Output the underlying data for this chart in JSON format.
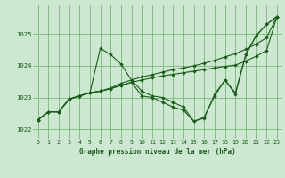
{
  "title": "Graphe pression niveau de la mer (hPa)",
  "background_color": "#cce8d0",
  "grid_color": "#6aab6a",
  "line_color": "#1a5c1a",
  "xlim": [
    -0.5,
    23.5
  ],
  "ylim": [
    1021.7,
    1025.9
  ],
  "yticks": [
    1022,
    1023,
    1024,
    1025
  ],
  "xticks": [
    0,
    1,
    2,
    3,
    4,
    5,
    6,
    7,
    8,
    9,
    10,
    11,
    12,
    13,
    14,
    15,
    16,
    17,
    18,
    19,
    20,
    21,
    22,
    23
  ],
  "series": [
    [
      1022.3,
      1022.55,
      1022.55,
      1022.95,
      1023.05,
      1023.15,
      1024.55,
      1024.35,
      1024.05,
      1023.55,
      1023.2,
      1023.05,
      1023.0,
      1022.85,
      1022.7,
      1022.25,
      1022.35,
      1023.1,
      1023.55,
      1023.15,
      1024.35,
      1024.95,
      1025.3,
      1025.55
    ],
    [
      1022.3,
      1022.55,
      1022.55,
      1022.95,
      1023.05,
      1023.15,
      1023.2,
      1023.3,
      1023.45,
      1023.55,
      1023.65,
      1023.72,
      1023.8,
      1023.88,
      1023.93,
      1024.0,
      1024.08,
      1024.17,
      1024.28,
      1024.38,
      1024.52,
      1024.68,
      1024.88,
      1025.55
    ],
    [
      1022.3,
      1022.55,
      1022.55,
      1022.95,
      1023.05,
      1023.15,
      1023.2,
      1023.28,
      1023.38,
      1023.48,
      1023.55,
      1023.62,
      1023.68,
      1023.73,
      1023.78,
      1023.83,
      1023.88,
      1023.93,
      1023.98,
      1024.02,
      1024.15,
      1024.3,
      1024.48,
      1025.55
    ],
    [
      1022.3,
      1022.55,
      1022.55,
      1022.95,
      1023.05,
      1023.15,
      1023.2,
      1023.28,
      1023.38,
      1023.48,
      1023.05,
      1023.0,
      1022.85,
      1022.7,
      1022.6,
      1022.25,
      1022.38,
      1023.05,
      1023.55,
      1023.1,
      1024.35,
      1024.95,
      1025.3,
      1025.55
    ]
  ]
}
